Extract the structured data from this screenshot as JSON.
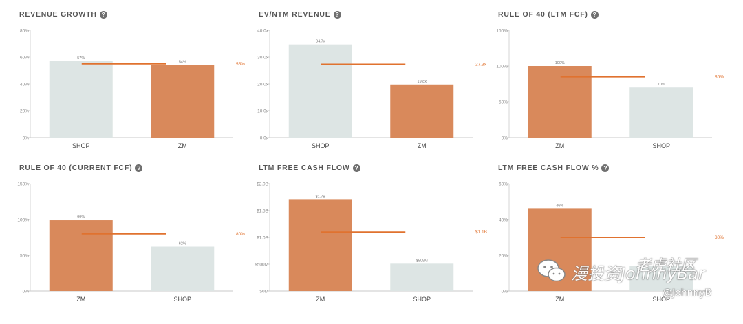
{
  "colors": {
    "accent": "#d9895b",
    "neutral": "#dde5e4",
    "avg_line": "#e0722f",
    "axis_text": "#888888"
  },
  "chart_data": [
    {
      "title": "REVENUE GROWTH",
      "type": "bar",
      "categories": [
        "SHOP",
        "ZM"
      ],
      "values": [
        57,
        54
      ],
      "value_labels": [
        "57%",
        "54%"
      ],
      "bar_colors": [
        "neutral",
        "accent"
      ],
      "ylim": [
        0,
        80
      ],
      "yticks": [
        0,
        20,
        40,
        60,
        80
      ],
      "ytick_labels": [
        "0%",
        "20%",
        "40%",
        "60%",
        "80%"
      ],
      "average": 55,
      "average_label": "55%"
    },
    {
      "title": "EV/NTM REVENUE",
      "type": "bar",
      "categories": [
        "SHOP",
        "ZM"
      ],
      "values": [
        34.7,
        19.8
      ],
      "value_labels": [
        "34.7x",
        "19.8x"
      ],
      "bar_colors": [
        "neutral",
        "accent"
      ],
      "ylim": [
        0,
        40
      ],
      "yticks": [
        0,
        10,
        20,
        30,
        40
      ],
      "ytick_labels": [
        "0.0x",
        "10.0x",
        "20.0x",
        "30.0x",
        "40.0x"
      ],
      "average": 27.3,
      "average_label": "27.3x"
    },
    {
      "title": "RULE OF 40 (LTM FCF)",
      "type": "bar",
      "categories": [
        "ZM",
        "SHOP"
      ],
      "values": [
        100,
        70
      ],
      "value_labels": [
        "100%",
        "70%"
      ],
      "bar_colors": [
        "accent",
        "neutral"
      ],
      "ylim": [
        0,
        150
      ],
      "yticks": [
        0,
        50,
        100,
        150
      ],
      "ytick_labels": [
        "0%",
        "50%",
        "100%",
        "150%"
      ],
      "average": 85,
      "average_label": "85%"
    },
    {
      "title": "RULE OF 40 (CURRENT FCF)",
      "type": "bar",
      "categories": [
        "ZM",
        "SHOP"
      ],
      "values": [
        99,
        62
      ],
      "value_labels": [
        "99%",
        "62%"
      ],
      "bar_colors": [
        "accent",
        "neutral"
      ],
      "ylim": [
        0,
        150
      ],
      "yticks": [
        0,
        50,
        100,
        150
      ],
      "ytick_labels": [
        "0%",
        "50%",
        "100%",
        "150%"
      ],
      "average": 80,
      "average_label": "80%"
    },
    {
      "title": "LTM FREE CASH FLOW",
      "type": "bar",
      "categories": [
        "ZM",
        "SHOP"
      ],
      "values": [
        1.7,
        0.509
      ],
      "value_labels": [
        "$1.7B",
        "$509M"
      ],
      "bar_colors": [
        "accent",
        "neutral"
      ],
      "ylim": [
        0,
        2
      ],
      "yticks": [
        0,
        0.5,
        1,
        1.5,
        2
      ],
      "ytick_labels": [
        "$0M",
        "$500M",
        "$1.0B",
        "$1.5B",
        "$2.0B"
      ],
      "average": 1.1,
      "average_label": "$1.1B"
    },
    {
      "title": "LTM FREE CASH FLOW %",
      "type": "bar",
      "categories": [
        "ZM",
        "SHOP"
      ],
      "values": [
        46,
        14
      ],
      "value_labels": [
        "46%",
        ""
      ],
      "bar_colors": [
        "accent",
        "neutral"
      ],
      "ylim": [
        0,
        60
      ],
      "yticks": [
        0,
        20,
        40,
        60
      ],
      "ytick_labels": [
        "0%",
        "20%",
        "40%",
        "60%"
      ],
      "average": 30,
      "average_label": "30%"
    }
  ],
  "watermark": {
    "text": "漫投资JohnnyBar",
    "handle": "@JohnnyB",
    "logo_text": "老虎社区",
    "icon": "wechat-icon"
  }
}
